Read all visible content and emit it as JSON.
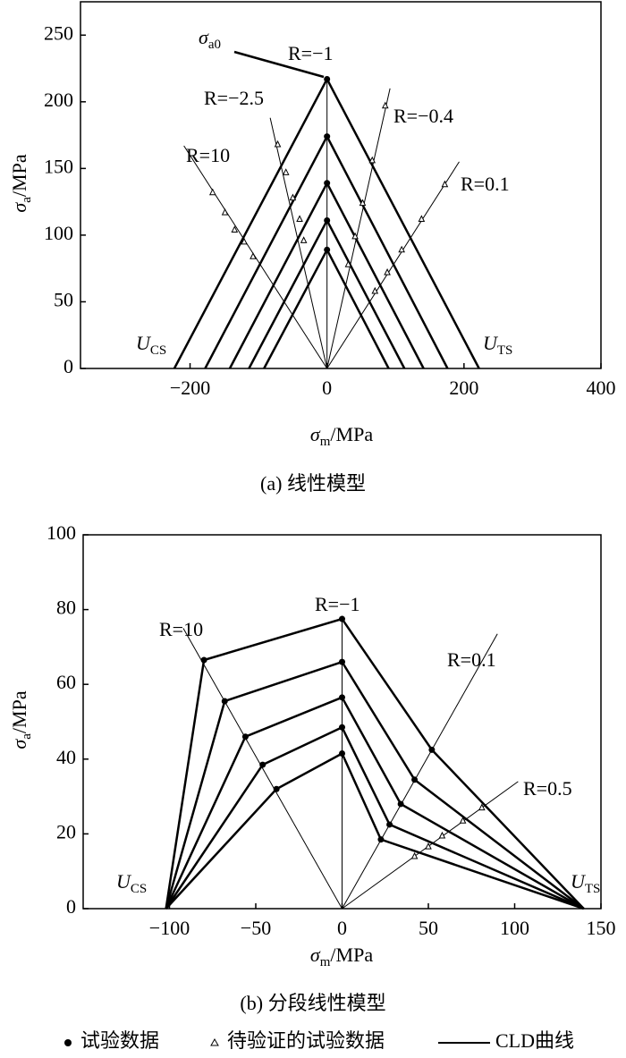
{
  "chart_data": [
    {
      "type": "line",
      "caption": "(a) 线性模型",
      "color": "#000000",
      "xlabel": {
        "main": "σ",
        "sub": "m",
        "rest": "/MPa"
      },
      "ylabel": {
        "main": "σ",
        "sub": "a",
        "rest": "/MPa"
      },
      "xlim": [
        -360,
        400
      ],
      "ylim": [
        0,
        275
      ],
      "xticks": [
        {
          "value": -200,
          "label": "−200"
        },
        0,
        200,
        400
      ],
      "yticks": [
        0,
        50,
        100,
        150,
        200,
        250
      ],
      "series": [
        {
          "style": "cld",
          "x": [
            -223,
            0,
            222
          ],
          "values": [
            0,
            217,
            0
          ]
        },
        {
          "style": "cld",
          "x": [
            -178,
            0,
            176
          ],
          "values": [
            0,
            174,
            0
          ]
        },
        {
          "style": "cld",
          "x": [
            -142,
            0,
            141
          ],
          "values": [
            0,
            139,
            0
          ]
        },
        {
          "style": "cld",
          "x": [
            -114,
            0,
            113
          ],
          "values": [
            0,
            111,
            0
          ]
        },
        {
          "style": "cld",
          "x": [
            -92,
            0,
            90
          ],
          "values": [
            0,
            89,
            0
          ]
        },
        {
          "style": "ray",
          "x": [
            0,
            0
          ],
          "values": [
            0,
            217
          ]
        },
        {
          "style": "ray",
          "x": [
            0,
            -209
          ],
          "values": [
            0,
            167
          ]
        },
        {
          "style": "ray",
          "x": [
            0,
            -83
          ],
          "values": [
            0,
            188
          ]
        },
        {
          "style": "ray",
          "x": [
            0,
            92
          ],
          "values": [
            0,
            210
          ]
        },
        {
          "style": "ray",
          "x": [
            0,
            193
          ],
          "values": [
            0,
            155
          ]
        },
        {
          "style": "test",
          "x": [
            0,
            0,
            0,
            0,
            0
          ],
          "values": [
            217,
            174,
            139,
            111,
            89
          ]
        },
        {
          "style": "pending",
          "x": [
            -167,
            -149,
            -135,
            -121,
            -108,
            -72,
            -60,
            -50,
            -40,
            -34,
            85,
            66,
            52,
            41,
            31,
            172,
            138,
            109,
            88,
            70
          ],
          "values": [
            132,
            117,
            104,
            95,
            84,
            168,
            147,
            128,
            112,
            96,
            197,
            156,
            124,
            99,
            78,
            138,
            112,
            89,
            72,
            58
          ]
        }
      ],
      "annotations": [
        {
          "main": "σ",
          "sub": "a0"
        },
        {
          "main": "R=−1"
        },
        {
          "main": "R=−2.5"
        },
        {
          "main": "R=−0.4"
        },
        {
          "main": "R=10"
        },
        {
          "main": "R=0.1"
        },
        {
          "main": "U",
          "sub": "CS"
        },
        {
          "main": "U",
          "sub": "TS"
        }
      ]
    },
    {
      "type": "line",
      "caption": "(b) 分段线性模型",
      "color": "#000000",
      "xlabel": {
        "main": "σ",
        "sub": "m",
        "rest": "/MPa"
      },
      "ylabel": {
        "main": "σ",
        "sub": "a",
        "rest": "/MPa"
      },
      "xlim": [
        -150,
        150
      ],
      "ylim": [
        0,
        100
      ],
      "xticks": [
        {
          "value": -100,
          "label": "−100"
        },
        {
          "value": -50,
          "label": "−50"
        },
        0,
        50,
        100,
        150
      ],
      "yticks": [
        0,
        20,
        40,
        60,
        80,
        100
      ],
      "series": [
        {
          "style": "cld",
          "x": [
            -102,
            -80,
            0,
            52,
            140
          ],
          "values": [
            0,
            66.5,
            77.5,
            42.5,
            0
          ]
        },
        {
          "style": "cld",
          "x": [
            -102,
            -68,
            0,
            42,
            140
          ],
          "values": [
            0,
            55.5,
            66,
            34.5,
            0
          ]
        },
        {
          "style": "cld",
          "x": [
            -102,
            -56,
            0,
            34,
            140
          ],
          "values": [
            0,
            46,
            56.5,
            28,
            0
          ]
        },
        {
          "style": "cld",
          "x": [
            -102,
            -46,
            0,
            27.5,
            140
          ],
          "values": [
            0,
            38.5,
            48.5,
            22.5,
            0
          ]
        },
        {
          "style": "cld",
          "x": [
            -102,
            -38,
            0,
            22.5,
            140
          ],
          "values": [
            0,
            32,
            41.5,
            18.5,
            0
          ]
        },
        {
          "style": "ray",
          "x": [
            0,
            0
          ],
          "values": [
            0,
            77.5
          ]
        },
        {
          "style": "ray",
          "x": [
            0,
            -92
          ],
          "values": [
            0,
            75
          ]
        },
        {
          "style": "ray",
          "x": [
            0,
            90
          ],
          "values": [
            0,
            73.5
          ]
        },
        {
          "style": "ray",
          "x": [
            0,
            102
          ],
          "values": [
            0,
            34
          ]
        },
        {
          "style": "test",
          "x": [
            -80,
            -68,
            -56,
            -46,
            -38,
            0,
            0,
            0,
            0,
            0,
            52,
            42,
            34,
            27.5,
            22.5
          ],
          "values": [
            66.5,
            55.5,
            46,
            38.5,
            32,
            77.5,
            66,
            56.5,
            48.5,
            41.5,
            42.5,
            34.5,
            28,
            22.5,
            18.5
          ]
        },
        {
          "style": "pending",
          "x": [
            42,
            50,
            58,
            70,
            81
          ],
          "values": [
            14,
            16.6,
            19.5,
            23.5,
            27
          ]
        }
      ],
      "annotations": [
        {
          "main": "R=−1"
        },
        {
          "main": "R=10"
        },
        {
          "main": "R=0.1"
        },
        {
          "main": "R=0.5"
        },
        {
          "main": "U",
          "sub": "CS"
        },
        {
          "main": "U",
          "sub": "TS"
        }
      ]
    }
  ],
  "legend": {
    "items": [
      "试验数据",
      "待验证的试验数据",
      "CLD曲线"
    ]
  }
}
